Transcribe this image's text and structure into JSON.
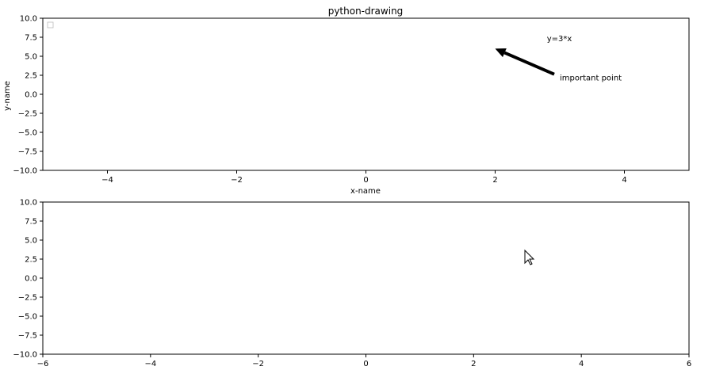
{
  "chart_data": [
    {
      "type": "line",
      "title": "python-drawing",
      "xlabel": "x-name",
      "ylabel": "y-name",
      "xlim": [
        -5,
        5
      ],
      "ylim": [
        -10,
        10
      ],
      "xticks": [
        -4,
        -2,
        0,
        2,
        4
      ],
      "yticks": [
        10.0,
        7.5,
        5.0,
        2.5,
        0.0,
        -2.5,
        -5.0,
        -7.5,
        -10.0
      ],
      "xtick_labels": [
        "−4",
        "−2",
        "0",
        "2",
        "4"
      ],
      "ytick_labels": [
        "10.0",
        "7.5",
        "5.0",
        "2.5",
        "0.0",
        "−2.5",
        "−5.0",
        "−7.5",
        "−10.0"
      ],
      "legend": "top-left",
      "series": [],
      "annotations": [
        {
          "text": "y=3*x",
          "x": 2.8,
          "y": 7.0
        },
        {
          "text": "important point",
          "x": 3.0,
          "y": 1.8,
          "arrow_to": [
            2.0,
            6.0
          ]
        }
      ]
    },
    {
      "type": "line",
      "title": "",
      "xlabel": "",
      "ylabel": "",
      "xlim": [
        -6,
        6
      ],
      "ylim": [
        -10,
        10
      ],
      "xticks": [
        -6,
        -4,
        -2,
        0,
        2,
        4,
        6
      ],
      "yticks": [
        10.0,
        7.5,
        5.0,
        2.5,
        0.0,
        -2.5,
        -5.0,
        -7.5,
        -10.0
      ],
      "xtick_labels": [
        "−6",
        "−4",
        "−2",
        "0",
        "2",
        "4",
        "6"
      ],
      "ytick_labels": [
        "10.0",
        "7.5",
        "5.0",
        "2.5",
        "0.0",
        "−2.5",
        "−5.0",
        "−7.5",
        "−10.0"
      ],
      "series": []
    }
  ]
}
